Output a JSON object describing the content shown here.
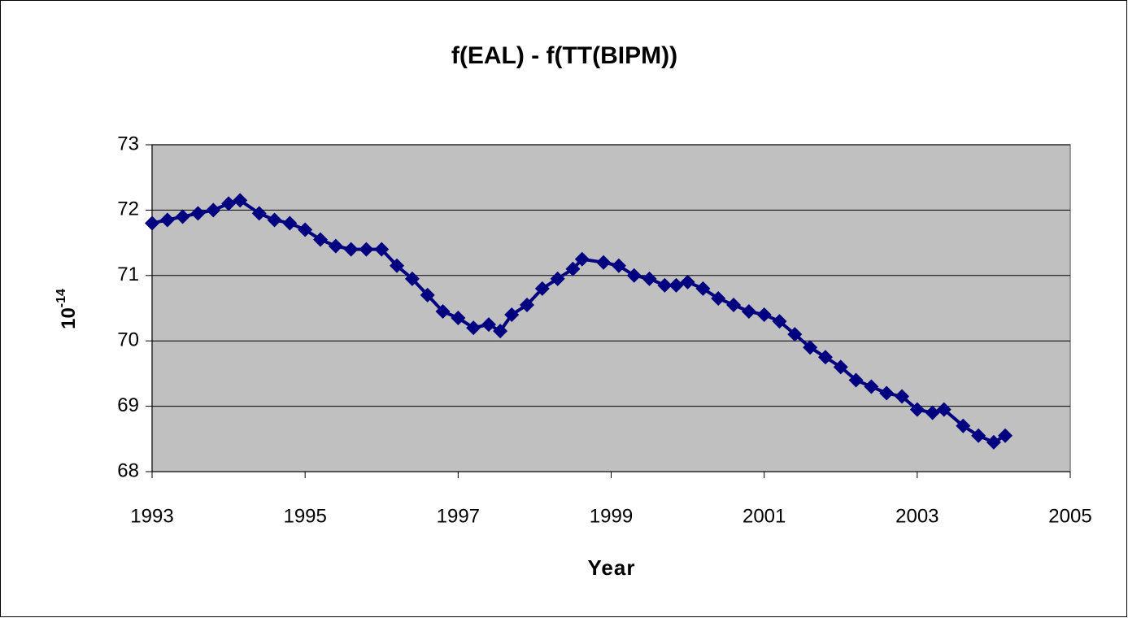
{
  "chart_data": {
    "type": "scatter",
    "title": "f(EAL) - f(TT(BIPM))",
    "xlabel": "Year",
    "ylabel": {
      "base": "10",
      "exponent": "-14"
    },
    "color": "#000080",
    "xlim": [
      1993,
      2005
    ],
    "xticks": [
      1993,
      1995,
      1997,
      1999,
      2001,
      2003,
      2005
    ],
    "ylim": [
      68,
      73
    ],
    "yticks": [
      68,
      69,
      70,
      71,
      72,
      73
    ],
    "grid": true,
    "x": [
      1993.0,
      1993.2,
      1993.4,
      1993.6,
      1993.8,
      1994.0,
      1994.15,
      1994.4,
      1994.6,
      1994.8,
      1995.0,
      1995.2,
      1995.4,
      1995.6,
      1995.8,
      1996.0,
      1996.2,
      1996.4,
      1996.6,
      1996.8,
      1997.0,
      1997.2,
      1997.4,
      1997.55,
      1997.7,
      1997.9,
      1998.1,
      1998.3,
      1998.5,
      1998.62,
      1998.9,
      1999.1,
      1999.3,
      1999.5,
      1999.7,
      1999.85,
      2000.0,
      2000.2,
      2000.4,
      2000.6,
      2000.8,
      2001.0,
      2001.2,
      2001.4,
      2001.6,
      2001.8,
      2002.0,
      2002.2,
      2002.4,
      2002.6,
      2002.8,
      2003.0,
      2003.2,
      2003.35,
      2003.6,
      2003.8,
      2004.0,
      2004.15
    ],
    "values": [
      71.8,
      71.85,
      71.9,
      71.95,
      72.0,
      72.1,
      72.15,
      71.95,
      71.85,
      71.8,
      71.7,
      71.55,
      71.45,
      71.4,
      71.4,
      71.4,
      71.15,
      70.95,
      70.7,
      70.45,
      70.35,
      70.2,
      70.25,
      70.15,
      70.4,
      70.55,
      70.8,
      70.95,
      71.1,
      71.25,
      71.2,
      71.15,
      71.0,
      70.95,
      70.85,
      70.85,
      70.9,
      70.8,
      70.65,
      70.55,
      70.45,
      70.4,
      70.3,
      70.1,
      69.9,
      69.75,
      69.6,
      69.4,
      69.3,
      69.2,
      69.15,
      68.95,
      68.9,
      68.95,
      68.7,
      68.55,
      68.45,
      68.55
    ]
  }
}
